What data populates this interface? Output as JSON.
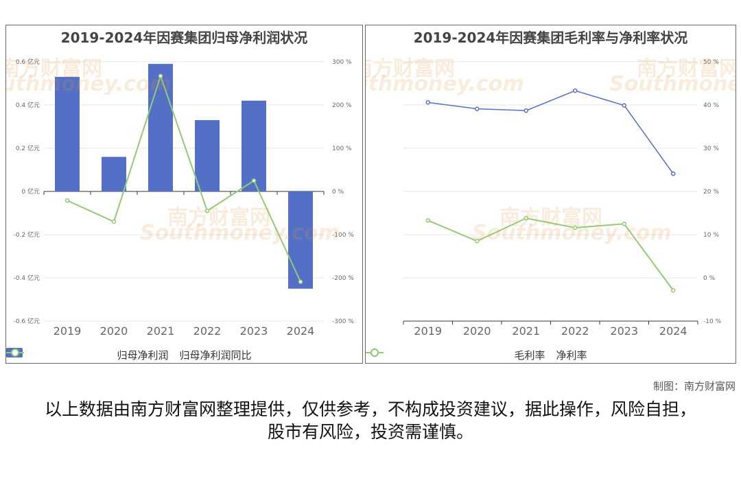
{
  "credit": "制图：南方财富网",
  "disclaimer": "以上数据由南方财富网整理提供，仅供参考，不构成投资建议，据此操作，风险自担，股市有风险，投资需谨慎。",
  "watermark": {
    "cn": "南方财富网",
    "en": "Southmoney.com"
  },
  "chart_data": [
    {
      "type": "bar",
      "title": "2019-2024年因赛集团归母净利润状况",
      "categories": [
        "2019",
        "2020",
        "2021",
        "2022",
        "2023",
        "2024"
      ],
      "y_axis": {
        "ticks": [
          "0.6 亿元",
          "0.4 亿元",
          "0.2 亿元",
          "0 亿元",
          "-0.2 亿元",
          "-0.4 亿元",
          "-0.6 亿元"
        ],
        "ylim": [
          -0.6,
          0.6
        ]
      },
      "y2_axis": {
        "ticks": [
          "300 %",
          "200 %",
          "100 %",
          "0 %",
          "-100 %",
          "-200 %",
          "-300 %"
        ],
        "ylim": [
          -300,
          300
        ]
      },
      "series": [
        {
          "name": "归母净利润",
          "type": "bar",
          "axis": "left",
          "color": "#5470c6",
          "values": [
            0.53,
            0.16,
            0.59,
            0.33,
            0.42,
            -0.45
          ]
        },
        {
          "name": "归母净利润同比",
          "type": "line",
          "axis": "right",
          "color": "#91cc75",
          "values": [
            -21,
            -70,
            267,
            -45,
            25,
            -209
          ]
        }
      ],
      "legend_position": "bottom"
    },
    {
      "type": "line",
      "title": "2019-2024年因赛集团毛利率与净利率状况",
      "categories": [
        "2019",
        "2020",
        "2021",
        "2022",
        "2023",
        "2024"
      ],
      "y2_axis": {
        "ticks": [
          "50 %",
          "40 %",
          "30 %",
          "20 %",
          "10 %",
          "0 %",
          "-10 %"
        ],
        "ylim": [
          -10,
          50
        ]
      },
      "series": [
        {
          "name": "毛利率",
          "color": "#5470c6",
          "values": [
            40.6,
            39.1,
            38.7,
            43.3,
            39.9,
            24.1
          ]
        },
        {
          "name": "净利率",
          "color": "#91cc75",
          "values": [
            13.3,
            8.5,
            13.8,
            11.6,
            12.5,
            -2.9
          ]
        }
      ],
      "legend_position": "bottom"
    }
  ]
}
